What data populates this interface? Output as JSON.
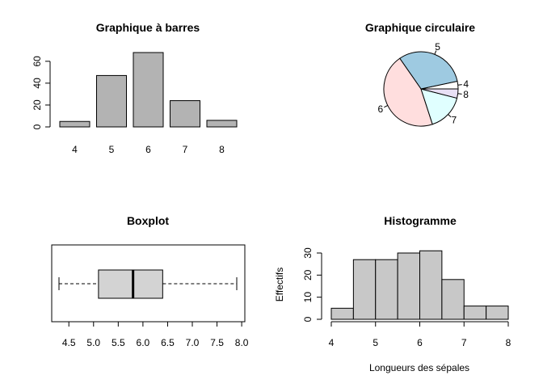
{
  "chart_data": [
    {
      "type": "bar",
      "title": "Graphique à barres",
      "categories": [
        "4",
        "5",
        "6",
        "7",
        "8"
      ],
      "values": [
        5,
        47,
        68,
        24,
        6
      ],
      "ylim": [
        0,
        68
      ],
      "yticks": [
        "0",
        "20",
        "40",
        "60"
      ],
      "bar_color": "#b3b3b3",
      "grid": false
    },
    {
      "type": "pie",
      "title": "Graphique circulaire",
      "labels": [
        "4",
        "5",
        "6",
        "7",
        "8"
      ],
      "values": [
        5,
        47,
        68,
        24,
        6
      ],
      "colors": [
        "#ffffff",
        "#9ecae1",
        "#ffdede",
        "#e0ffff",
        "#e8e0f5"
      ]
    },
    {
      "type": "box",
      "title": "Boxplot",
      "stats": {
        "min": 4.3,
        "q1": 5.1,
        "median": 5.8,
        "q3": 6.4,
        "max": 7.9
      },
      "xlim": [
        4.3,
        7.9
      ],
      "xticks": [
        "4.5",
        "5.0",
        "5.5",
        "6.0",
        "6.5",
        "7.0",
        "7.5",
        "8.0"
      ],
      "box_color": "#d3d3d3"
    },
    {
      "type": "histogram",
      "title": "Histogramme",
      "xlabel": "Longueurs des sépales",
      "ylabel": "Effectifs",
      "bins": [
        4,
        4.5,
        5,
        5.5,
        6,
        6.5,
        7,
        7.5,
        8
      ],
      "counts": [
        5,
        27,
        27,
        30,
        31,
        18,
        6,
        6
      ],
      "xticks": [
        "4",
        "5",
        "6",
        "7",
        "8"
      ],
      "yticks": [
        "0",
        "10",
        "20",
        "30"
      ],
      "bar_color": "#c8c8c8"
    }
  ]
}
